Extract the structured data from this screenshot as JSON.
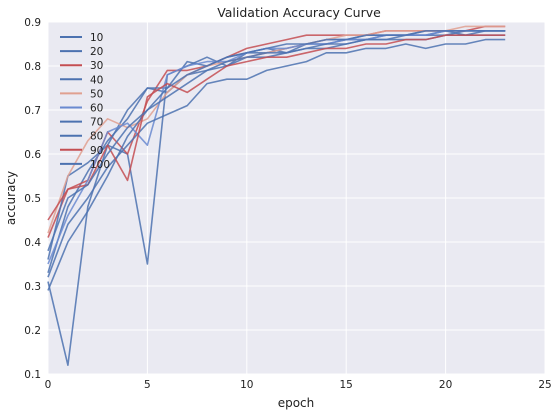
{
  "chart_data": {
    "type": "line",
    "title": "Validation Accuracy Curve",
    "xlabel": "epoch",
    "ylabel": "accuracy",
    "xlim": [
      0,
      25
    ],
    "ylim": [
      0.1,
      0.9
    ],
    "xticks": [
      0,
      5,
      10,
      15,
      20,
      25
    ],
    "yticks": [
      0.1,
      0.2,
      0.3,
      0.4,
      0.5,
      0.6,
      0.7,
      0.8,
      0.9
    ],
    "grid": true,
    "legend_position": "top-left",
    "background": "#eaeaf2",
    "x": [
      0,
      1,
      2,
      3,
      4,
      5,
      6,
      7,
      8,
      9,
      10,
      11,
      12,
      13,
      14,
      15,
      16,
      17,
      18,
      19,
      20,
      21,
      22,
      23
    ],
    "series": [
      {
        "name": "10",
        "color": "#4c72b0",
        "values": [
          0.31,
          0.12,
          0.48,
          0.62,
          0.6,
          0.35,
          0.78,
          0.8,
          0.82,
          0.8,
          0.83,
          0.84,
          0.83,
          0.85,
          0.85,
          0.86,
          0.87,
          0.87,
          0.87,
          0.88,
          0.88,
          0.88,
          0.88,
          0.88
        ]
      },
      {
        "name": "20",
        "color": "#4c72b0",
        "values": [
          0.33,
          0.48,
          0.56,
          0.63,
          0.68,
          0.75,
          0.74,
          0.78,
          0.79,
          0.8,
          0.82,
          0.82,
          0.83,
          0.84,
          0.84,
          0.85,
          0.86,
          0.86,
          0.87,
          0.87,
          0.87,
          0.88,
          0.88,
          0.88
        ]
      },
      {
        "name": "30",
        "color": "#c44e52",
        "values": [
          0.41,
          0.52,
          0.54,
          0.65,
          0.6,
          0.72,
          0.79,
          0.79,
          0.8,
          0.82,
          0.84,
          0.85,
          0.86,
          0.87,
          0.87,
          0.87,
          0.87,
          0.88,
          0.88,
          0.88,
          0.88,
          0.88,
          0.89,
          0.89
        ]
      },
      {
        "name": "40",
        "color": "#4c72b0",
        "values": [
          0.36,
          0.55,
          0.58,
          0.62,
          0.7,
          0.75,
          0.75,
          0.81,
          0.8,
          0.82,
          0.83,
          0.83,
          0.84,
          0.85,
          0.86,
          0.86,
          0.86,
          0.87,
          0.87,
          0.87,
          0.88,
          0.87,
          0.88,
          0.88
        ]
      },
      {
        "name": "50",
        "color": "#e0a090",
        "values": [
          0.42,
          0.55,
          0.63,
          0.68,
          0.66,
          0.68,
          0.74,
          0.78,
          0.8,
          0.81,
          0.82,
          0.83,
          0.84,
          0.85,
          0.86,
          0.87,
          0.87,
          0.88,
          0.88,
          0.88,
          0.88,
          0.89,
          0.89,
          0.89
        ]
      },
      {
        "name": "60",
        "color": "#6a8ad0",
        "values": [
          0.35,
          0.46,
          0.54,
          0.65,
          0.67,
          0.62,
          0.78,
          0.8,
          0.81,
          0.81,
          0.83,
          0.84,
          0.84,
          0.85,
          0.85,
          0.86,
          0.86,
          0.87,
          0.87,
          0.87,
          0.88,
          0.88,
          0.88,
          0.88
        ]
      },
      {
        "name": "70",
        "color": "#4c72b0",
        "values": [
          0.32,
          0.44,
          0.5,
          0.57,
          0.62,
          0.67,
          0.69,
          0.71,
          0.76,
          0.77,
          0.77,
          0.79,
          0.8,
          0.81,
          0.83,
          0.83,
          0.84,
          0.84,
          0.85,
          0.84,
          0.85,
          0.85,
          0.86,
          0.86
        ]
      },
      {
        "name": "80",
        "color": "#4c72b0",
        "values": [
          0.29,
          0.4,
          0.47,
          0.55,
          0.64,
          0.7,
          0.73,
          0.76,
          0.79,
          0.81,
          0.82,
          0.83,
          0.83,
          0.84,
          0.85,
          0.85,
          0.86,
          0.86,
          0.86,
          0.86,
          0.87,
          0.87,
          0.87,
          0.87
        ]
      },
      {
        "name": "90",
        "color": "#c44e52",
        "values": [
          0.45,
          0.52,
          0.53,
          0.62,
          0.54,
          0.73,
          0.76,
          0.74,
          0.77,
          0.8,
          0.81,
          0.82,
          0.82,
          0.83,
          0.84,
          0.84,
          0.85,
          0.85,
          0.86,
          0.86,
          0.87,
          0.87,
          0.87,
          0.87
        ]
      },
      {
        "name": "100",
        "color": "#4c72b0",
        "values": [
          0.38,
          0.5,
          0.53,
          0.6,
          0.66,
          0.7,
          0.75,
          0.78,
          0.8,
          0.82,
          0.83,
          0.84,
          0.85,
          0.85,
          0.86,
          0.86,
          0.87,
          0.87,
          0.87,
          0.88,
          0.88,
          0.88,
          0.88,
          0.88
        ]
      }
    ]
  }
}
